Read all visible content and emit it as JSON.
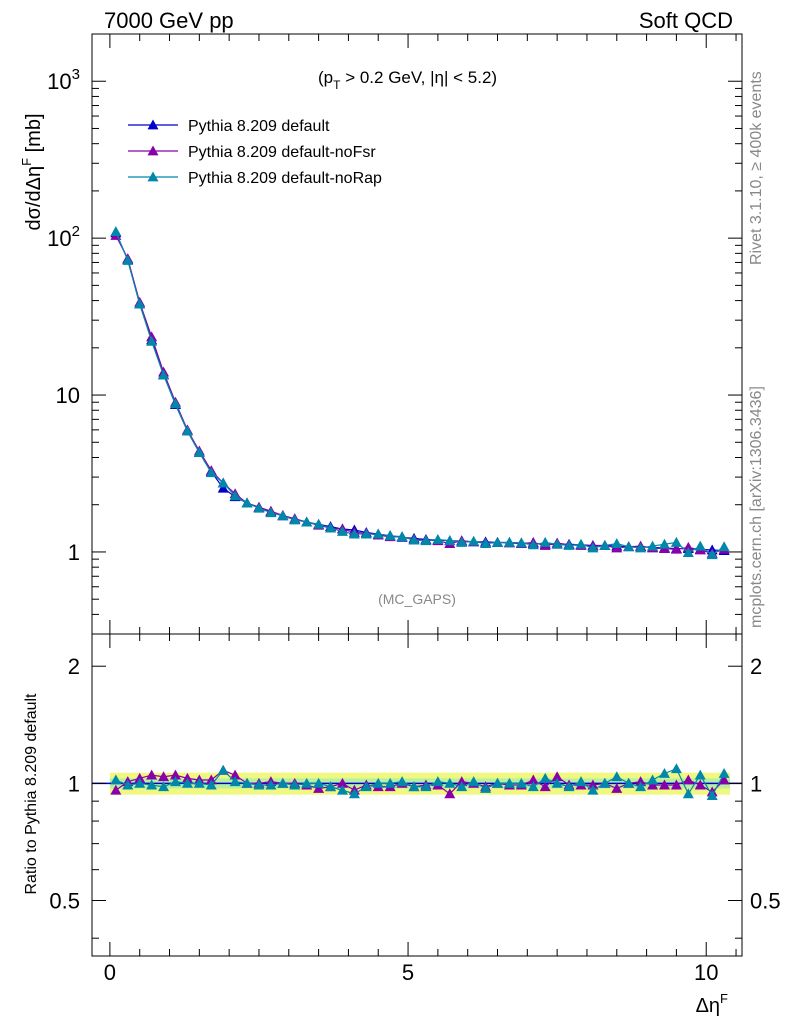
{
  "header": {
    "left": "7000 GeV pp",
    "right": "Soft QCD"
  },
  "side_text": {
    "rivet": "Rivet 3.1.10, ≥ 400k events",
    "mcplots": "mcplots.cern.ch [arXiv:1306.3436]"
  },
  "watermark": "(MC_GAPS)",
  "cut_label": {
    "open": "(p",
    "sub": "T",
    "rest": " > 0.2 GeV, |η| < 5.2)"
  },
  "axes": {
    "y_main": {
      "base": "dσ/dΔη",
      "sup": "F",
      "unit": " [mb]"
    },
    "y_ratio": "Ratio to Pythia 8.209 default",
    "x": {
      "base": "Δη",
      "sup": "F"
    }
  },
  "colors": {
    "default": "#0000cc",
    "noFsr": "#8800aa",
    "noRap": "#0088aa",
    "band_outer": "#f0f880",
    "band_inner": "#b8f0a0"
  },
  "chart_data": [
    {
      "type": "line",
      "panel": "main",
      "xlim": [
        -0.3,
        10.6
      ],
      "ylim": [
        0.3,
        2000
      ],
      "log_y": true,
      "xticks": [
        "0",
        "5",
        "10"
      ],
      "yticks": [
        "1",
        "10",
        "10^2",
        "10^3"
      ],
      "x": [
        0.1,
        0.3,
        0.5,
        0.7,
        0.9,
        1.1,
        1.3,
        1.5,
        1.7,
        1.9,
        2.1,
        2.3,
        2.5,
        2.7,
        2.9,
        3.1,
        3.3,
        3.5,
        3.7,
        3.9,
        4.1,
        4.3,
        4.5,
        4.7,
        4.9,
        5.1,
        5.3,
        5.5,
        5.7,
        5.9,
        6.1,
        6.3,
        6.5,
        6.7,
        6.9,
        7.1,
        7.3,
        7.5,
        7.7,
        7.9,
        8.1,
        8.3,
        8.5,
        8.7,
        8.9,
        9.1,
        9.3,
        9.5,
        9.7,
        9.9,
        10.1,
        10.3
      ],
      "series": [
        {
          "name": "Pythia 8.209 default",
          "values": [
            108,
            73,
            38,
            22.5,
            13.5,
            8.7,
            5.9,
            4.3,
            3.25,
            2.55,
            2.25,
            2.05,
            1.92,
            1.8,
            1.7,
            1.62,
            1.55,
            1.5,
            1.45,
            1.4,
            1.38,
            1.33,
            1.3,
            1.27,
            1.24,
            1.22,
            1.2,
            1.19,
            1.18,
            1.17,
            1.16,
            1.16,
            1.15,
            1.15,
            1.14,
            1.13,
            1.12,
            1.12,
            1.12,
            1.11,
            1.1,
            1.1,
            1.09,
            1.08,
            1.08,
            1.07,
            1.06,
            1.05,
            1.05,
            1.04,
            1.03,
            1.02
          ]
        },
        {
          "name": "Pythia 8.209 default-noFsr",
          "values": [
            104,
            74,
            39,
            23.5,
            14,
            9.0,
            6.0,
            4.4,
            3.3,
            2.75,
            2.35,
            2.05,
            1.93,
            1.82,
            1.71,
            1.63,
            1.55,
            1.48,
            1.42,
            1.4,
            1.33,
            1.32,
            1.28,
            1.25,
            1.25,
            1.2,
            1.19,
            1.18,
            1.13,
            1.18,
            1.16,
            1.14,
            1.15,
            1.14,
            1.13,
            1.15,
            1.1,
            1.14,
            1.11,
            1.1,
            1.09,
            1.1,
            1.06,
            1.08,
            1.09,
            1.06,
            1.05,
            1.04,
            1.07,
            1.03,
            0.98,
            1.04
          ]
        },
        {
          "name": "Pythia 8.209 default-noRap",
          "values": [
            110,
            72,
            38,
            22.0,
            13.4,
            8.8,
            5.9,
            4.3,
            3.2,
            2.75,
            2.28,
            2.05,
            1.9,
            1.78,
            1.7,
            1.6,
            1.55,
            1.5,
            1.42,
            1.35,
            1.3,
            1.3,
            1.3,
            1.27,
            1.25,
            1.19,
            1.18,
            1.2,
            1.18,
            1.15,
            1.17,
            1.13,
            1.15,
            1.15,
            1.14,
            1.11,
            1.15,
            1.12,
            1.1,
            1.12,
            1.06,
            1.1,
            1.13,
            1.08,
            1.06,
            1.09,
            1.12,
            1.15,
            0.99,
            1.09,
            0.96,
            1.08
          ]
        }
      ]
    },
    {
      "type": "line",
      "panel": "ratio",
      "xlim": [
        -0.3,
        10.6
      ],
      "ylim": [
        0.36,
        2.42
      ],
      "log_y": true,
      "xticks": [
        "0",
        "5",
        "10"
      ],
      "yticks": [
        "0.5",
        "1",
        "2"
      ],
      "x": [
        0.1,
        0.3,
        0.5,
        0.7,
        0.9,
        1.1,
        1.3,
        1.5,
        1.7,
        1.9,
        2.1,
        2.3,
        2.5,
        2.7,
        2.9,
        3.1,
        3.3,
        3.5,
        3.7,
        3.9,
        4.1,
        4.3,
        4.5,
        4.7,
        4.9,
        5.1,
        5.3,
        5.5,
        5.7,
        5.9,
        6.1,
        6.3,
        6.5,
        6.7,
        6.9,
        7.1,
        7.3,
        7.5,
        7.7,
        7.9,
        8.1,
        8.3,
        8.5,
        8.7,
        8.9,
        9.1,
        9.3,
        9.5,
        9.7,
        9.9,
        10.1,
        10.3
      ],
      "band": {
        "inner": 0.03,
        "outer": 0.065
      },
      "series": [
        {
          "name": "Pythia 8.209 default-noFsr",
          "values": [
            0.96,
            1.01,
            1.03,
            1.05,
            1.04,
            1.05,
            1.03,
            1.02,
            1.02,
            1.08,
            1.05,
            1.0,
            1.0,
            1.01,
            1.0,
            1.0,
            0.99,
            0.97,
            0.98,
            1.0,
            0.96,
            0.99,
            0.98,
            0.98,
            1.0,
            0.98,
            0.99,
            0.99,
            0.94,
            1.01,
            1.0,
            0.98,
            1.0,
            0.99,
            0.99,
            1.02,
            0.98,
            1.04,
            0.99,
            0.99,
            0.99,
            1.0,
            0.97,
            1.0,
            1.01,
            0.99,
            0.99,
            0.99,
            1.02,
            0.99,
            0.95,
            1.02
          ]
        },
        {
          "name": "Pythia 8.209 default-noRap",
          "values": [
            1.02,
            0.99,
            1.0,
            0.99,
            0.98,
            1.01,
            1.0,
            1.0,
            0.99,
            1.08,
            1.01,
            1.0,
            0.99,
            0.99,
            1.0,
            0.99,
            1.0,
            1.0,
            0.98,
            0.96,
            0.94,
            0.98,
            1.0,
            1.0,
            1.01,
            0.98,
            0.98,
            1.01,
            1.0,
            0.98,
            1.01,
            0.97,
            1.0,
            1.0,
            1.0,
            0.98,
            1.03,
            1.0,
            0.98,
            1.01,
            0.96,
            1.0,
            1.04,
            1.0,
            0.98,
            1.02,
            1.06,
            1.09,
            0.94,
            1.05,
            0.93,
            1.06
          ]
        }
      ]
    }
  ]
}
